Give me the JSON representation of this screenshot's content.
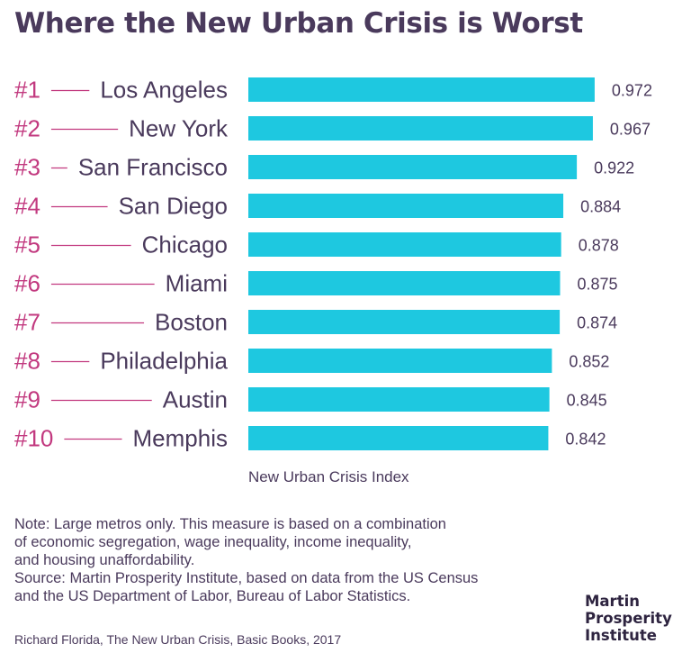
{
  "title": "Where the New Urban Crisis is Worst",
  "colors": {
    "bar": "#1ec8e0",
    "rank": "#c2397f",
    "text": "#4a3a5c",
    "leader": "#c2397f"
  },
  "chart_data": {
    "type": "bar",
    "orientation": "horizontal",
    "title": "Where the New Urban Crisis is Worst",
    "xlabel": "New Urban Crisis Index",
    "ranks": [
      "#1",
      "#2",
      "#3",
      "#4",
      "#5",
      "#6",
      "#7",
      "#8",
      "#9",
      "#10"
    ],
    "categories": [
      "Los Angeles",
      "New York",
      "San Francisco",
      "San Diego",
      "Chicago",
      "Miami",
      "Boston",
      "Philadelphia",
      "Austin",
      "Memphis"
    ],
    "values": [
      0.972,
      0.967,
      0.922,
      0.884,
      0.878,
      0.875,
      0.874,
      0.852,
      0.845,
      0.842
    ],
    "value_labels": [
      "0.972",
      "0.967",
      "0.922",
      "0.884",
      "0.878",
      "0.875",
      "0.874",
      "0.852",
      "0.845",
      "0.842"
    ],
    "xlim": [
      0,
      1
    ],
    "grid": false,
    "legend": "none"
  },
  "note": {
    "lines": [
      "Note: Large metros only. This measure is based on a combination",
      "of economic segregation, wage inequality, income inequality,",
      "and housing unaffordability.",
      "Source: Martin Prosperity Institute, based on data from the US Census",
      "and the US Department of Labor, Bureau of Labor Statistics."
    ]
  },
  "credit": "Richard Florida, The New Urban Crisis, Basic Books, 2017",
  "logo": {
    "line1": "Martin",
    "line2": "Prosperity",
    "line3": "Institute"
  }
}
